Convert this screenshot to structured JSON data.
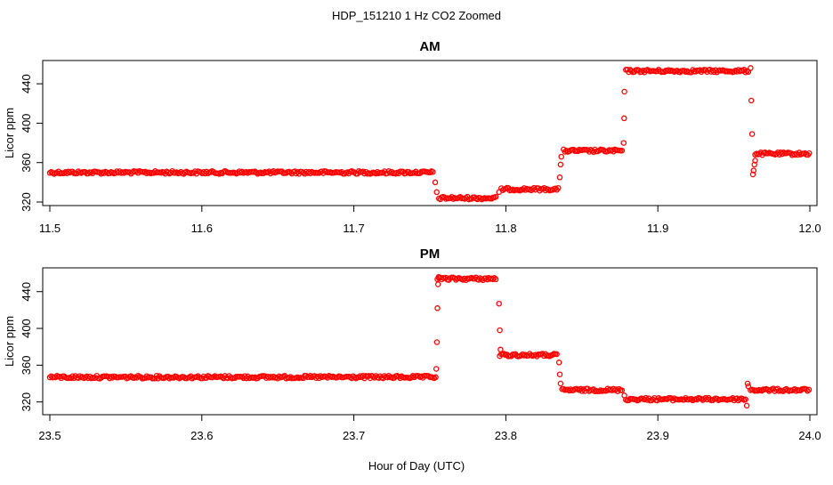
{
  "figure_title": "HDP_151210  1 Hz CO2 Zoomed",
  "xlabel": "Hour of Day (UTC)",
  "colors": {
    "points": "#ff0000",
    "frame": "#000000",
    "background": "#ffffff"
  },
  "chart_data": [
    {
      "type": "scatter",
      "title": "AM",
      "xlabel": "",
      "ylabel": "Licor ppm",
      "xlim": [
        11.5,
        12.0
      ],
      "ylim": [
        320,
        460
      ],
      "xticks": [
        "11.5",
        "11.6",
        "11.7",
        "11.8",
        "11.9",
        "12.0"
      ],
      "yticks": [
        "320",
        "360",
        "400",
        "440"
      ],
      "marker": "open-circle",
      "color": "#ff0000",
      "segments": [
        {
          "x": [
            11.5,
            11.752
          ],
          "y": 350
        },
        {
          "x": [
            11.756,
            11.794
          ],
          "y": 324
        },
        {
          "x": [
            11.797,
            11.835
          ],
          "y": 333
        },
        {
          "x": [
            11.838,
            11.877
          ],
          "y": 372
        },
        {
          "x": [
            11.879,
            11.96
          ],
          "y": 453
        },
        {
          "x": [
            11.964,
            12.0
          ],
          "y": 369
        }
      ],
      "transitions": [
        {
          "x": 11.7535,
          "y": 340
        },
        {
          "x": 11.7545,
          "y": 330
        },
        {
          "x": 11.7955,
          "y": 330
        },
        {
          "x": 11.8355,
          "y": 345
        },
        {
          "x": 11.836,
          "y": 358
        },
        {
          "x": 11.8365,
          "y": 366
        },
        {
          "x": 11.8775,
          "y": 380
        },
        {
          "x": 11.8778,
          "y": 405
        },
        {
          "x": 11.878,
          "y": 432
        },
        {
          "x": 11.961,
          "y": 456
        },
        {
          "x": 11.9615,
          "y": 423
        },
        {
          "x": 11.962,
          "y": 389
        },
        {
          "x": 11.9625,
          "y": 348
        },
        {
          "x": 11.963,
          "y": 352
        },
        {
          "x": 11.9635,
          "y": 358
        },
        {
          "x": 11.964,
          "y": 362
        }
      ]
    },
    {
      "type": "scatter",
      "title": "PM",
      "xlabel": "",
      "ylabel": "Licor ppm",
      "xlim": [
        23.5,
        24.0
      ],
      "ylim": [
        310,
        462
      ],
      "xticks": [
        "23.5",
        "23.6",
        "23.7",
        "23.8",
        "23.9",
        "24.0"
      ],
      "yticks": [
        "320",
        "360",
        "400",
        "440"
      ],
      "marker": "open-circle",
      "color": "#ff0000",
      "segments": [
        {
          "x": [
            23.5,
            23.754
          ],
          "y": 347
        },
        {
          "x": [
            23.755,
            23.794
          ],
          "y": 454
        },
        {
          "x": [
            23.796,
            23.834
          ],
          "y": 371
        },
        {
          "x": [
            23.837,
            23.877
          ],
          "y": 333
        },
        {
          "x": [
            23.879,
            23.958
          ],
          "y": 323
        },
        {
          "x": [
            23.961,
            24.0
          ],
          "y": 333
        }
      ],
      "transitions": [
        {
          "x": 23.7542,
          "y": 356
        },
        {
          "x": 23.7546,
          "y": 385
        },
        {
          "x": 23.755,
          "y": 422
        },
        {
          "x": 23.7554,
          "y": 448
        },
        {
          "x": 23.7558,
          "y": 456
        },
        {
          "x": 23.7955,
          "y": 427
        },
        {
          "x": 23.796,
          "y": 398
        },
        {
          "x": 23.7965,
          "y": 377
        },
        {
          "x": 23.835,
          "y": 363
        },
        {
          "x": 23.8355,
          "y": 350
        },
        {
          "x": 23.836,
          "y": 340
        },
        {
          "x": 23.878,
          "y": 327
        },
        {
          "x": 23.9585,
          "y": 316
        },
        {
          "x": 23.959,
          "y": 340
        },
        {
          "x": 23.9595,
          "y": 337
        }
      ]
    }
  ]
}
